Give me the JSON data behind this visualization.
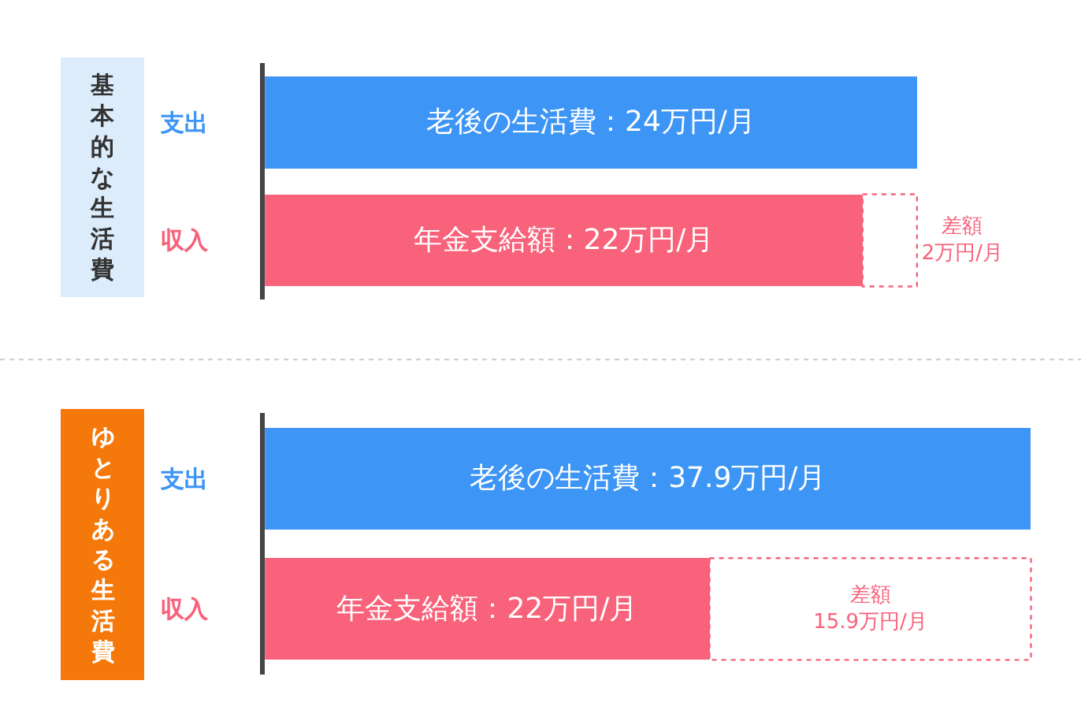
{
  "chart_data": [
    {
      "type": "bar",
      "orientation": "horizontal",
      "stacked": true,
      "title": "基本的な生活費",
      "categories": [
        "支出",
        "収入"
      ],
      "tick_labels": "y",
      "series": [
        {
          "values": [
            24,
            22
          ],
          "colors": [
            "#3d95f5",
            "#f8627a"
          ],
          "value_labels": [
            "老後の生活費：24万円/月",
            "年金支給額：22万円/月"
          ]
        },
        {
          "values": [
            null,
            2
          ],
          "color": "#ffffff",
          "value_labels": [
            null,
            "差額\n2万円/月"
          ]
        }
      ]
    },
    {
      "type": "bar",
      "orientation": "horizontal",
      "stacked": true,
      "title": "ゆとりある生活費",
      "categories": [
        "支出",
        "収入"
      ],
      "tick_labels": "y",
      "series": [
        {
          "values": [
            37.9,
            22
          ],
          "colors": [
            "#3d95f5",
            "#f8627a"
          ],
          "value_labels": [
            "老後の生活費：37.9万円/月",
            "年金支給額：22万円/月"
          ]
        },
        {
          "values": [
            null,
            15.9
          ],
          "color": "#ffffff",
          "value_labels": [
            null,
            "差額\n15.9万円/月"
          ]
        }
      ]
    }
  ]
}
